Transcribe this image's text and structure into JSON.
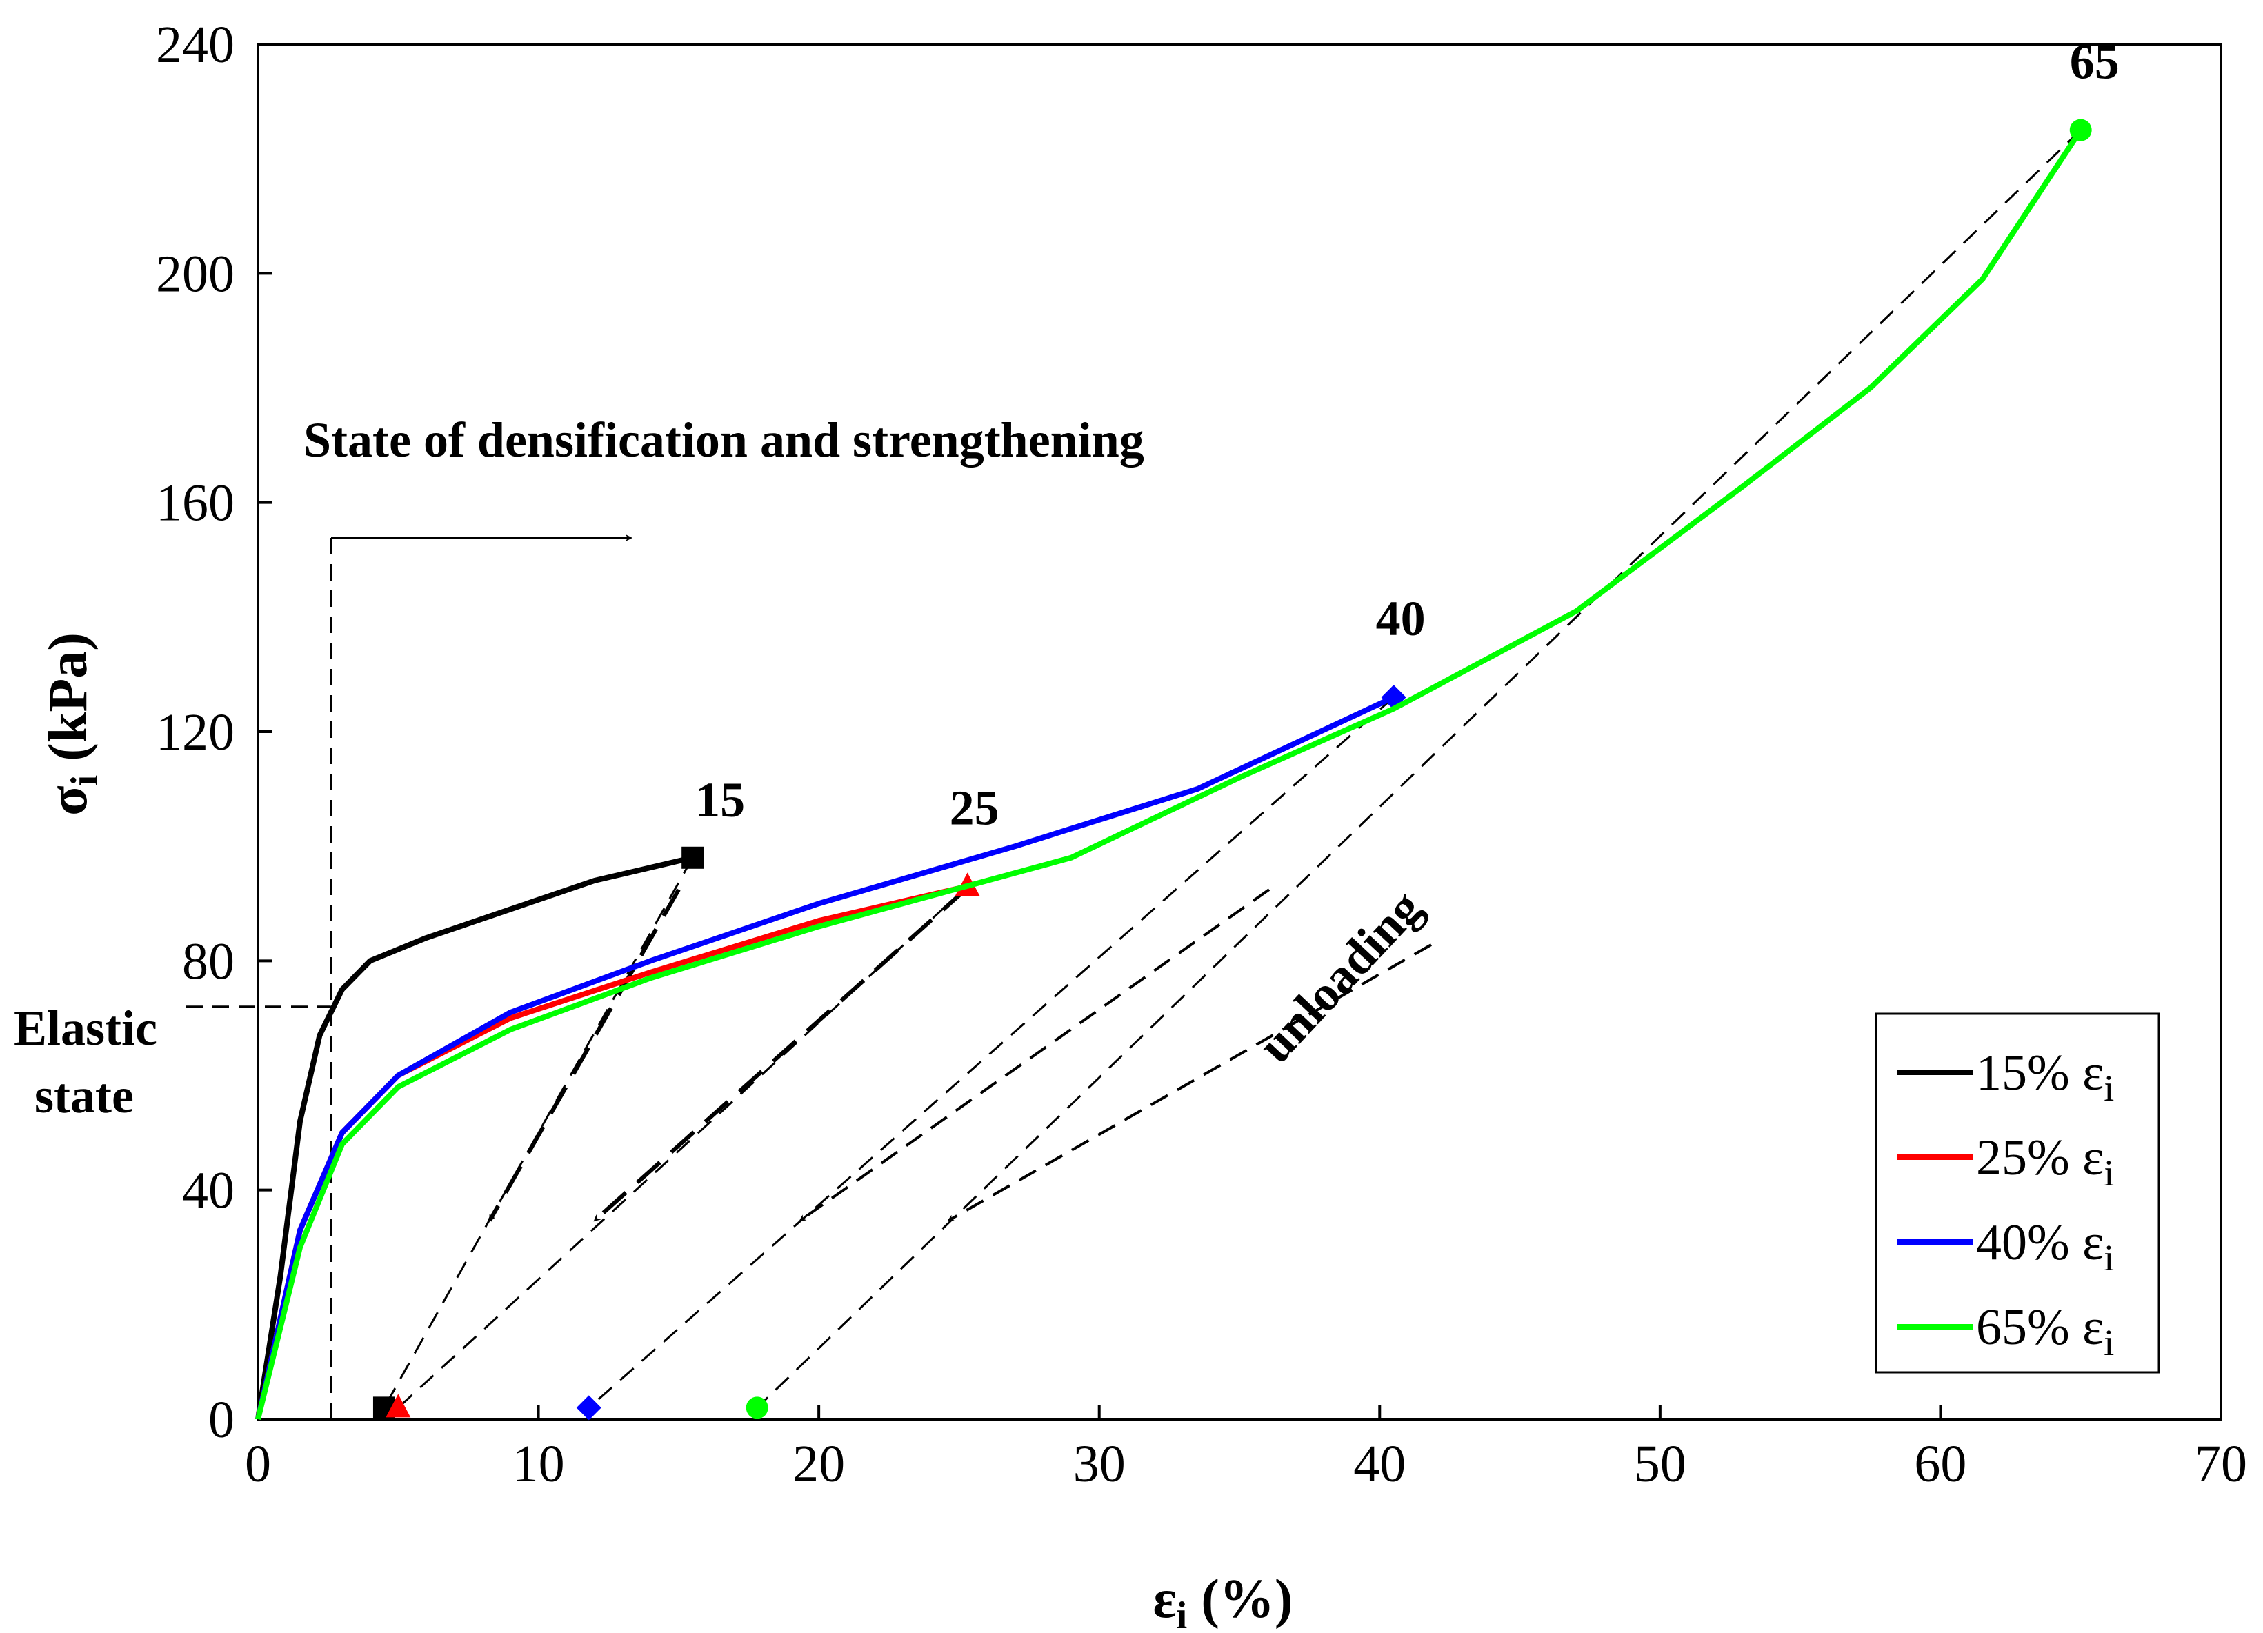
{
  "chart_data": {
    "type": "line",
    "title": "",
    "xlabel": "ε",
    "xlabel_sub": "i",
    "xlabel_unit": " (%)",
    "ylabel": "σ",
    "ylabel_sub": "i",
    "ylabel_unit": " (kPa)",
    "xlim": [
      0,
      70
    ],
    "ylim": [
      0,
      240
    ],
    "xticks": [
      0,
      10,
      20,
      30,
      40,
      50,
      60,
      70
    ],
    "yticks": [
      0,
      40,
      80,
      120,
      160,
      200,
      240
    ],
    "grid": false,
    "legend_position": "bottom-right",
    "series": [
      {
        "name": "15% ε",
        "name_sub": "i",
        "color": "#000000",
        "marker": "square",
        "x": [
          0,
          0.8,
          1.5,
          2.2,
          3.0,
          4.0,
          6,
          9,
          12,
          15.5
        ],
        "y": [
          0,
          25,
          52,
          67,
          75,
          80,
          84,
          89,
          94,
          98
        ],
        "unload_end": [
          4.5,
          2
        ]
      },
      {
        "name": "25% ε",
        "name_sub": "i",
        "color": "#ff0000",
        "marker": "triangle",
        "x": [
          0,
          1.5,
          3,
          5,
          9,
          14,
          20,
          25.3
        ],
        "y": [
          0,
          33,
          50,
          60,
          70,
          78,
          87,
          93
        ],
        "unload_end": [
          5,
          2
        ]
      },
      {
        "name": "40% ε",
        "name_sub": "i",
        "color": "#0000ff",
        "marker": "diamond",
        "x": [
          0,
          1.5,
          3,
          5,
          9,
          14,
          20,
          27,
          33.5,
          40.5
        ],
        "y": [
          0,
          33,
          50,
          60,
          71,
          80,
          90,
          100,
          110,
          126
        ],
        "unload_end": [
          11.8,
          2
        ]
      },
      {
        "name": "65% ε",
        "name_sub": "i",
        "color": "#00ff00",
        "marker": "circle",
        "x": [
          0,
          1.5,
          3,
          5,
          9,
          14,
          20,
          29,
          35,
          40.5,
          47,
          53,
          57.5,
          61.5,
          65
        ],
        "y": [
          0,
          30,
          48,
          58,
          68,
          77,
          86,
          98,
          112,
          124,
          141,
          163,
          180,
          199,
          225
        ],
        "unload_end": [
          17.8,
          2
        ]
      }
    ],
    "peak_labels": [
      "15",
      "25",
      "40",
      "65"
    ],
    "annotations": {
      "densification": "State of densification and strengthening",
      "elastic_line1": "Elastic",
      "elastic_line2": "state",
      "unloading": "unloading"
    }
  }
}
